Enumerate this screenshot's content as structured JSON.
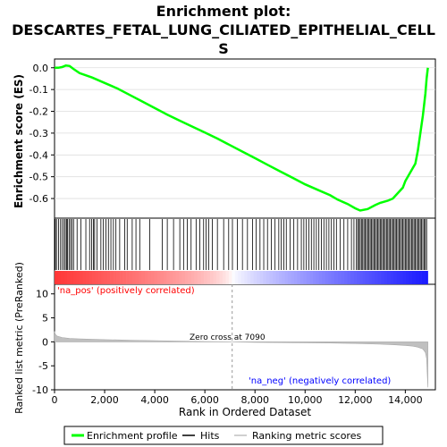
{
  "chart_data": {
    "type": "line",
    "title_line1": "Enrichment plot:",
    "title_line2": "DESCARTES_FETAL_LUNG_CILIATED_EPITHELIAL_CELL",
    "title_line3": "S",
    "top_panel": {
      "ylabel": "Enrichment score (ES)",
      "ylim": [
        -0.69,
        0.04
      ],
      "yticks": [
        0.0,
        -0.1,
        -0.2,
        -0.3,
        -0.4,
        -0.5,
        -0.6
      ],
      "ytick_labels": [
        "0.0",
        "-0.1",
        "-0.2",
        "-0.3",
        "-0.4",
        "-0.5",
        "-0.6"
      ],
      "series": [
        {
          "name": "Enrichment profile",
          "color": "#00ff00",
          "x": [
            0,
            150,
            300,
            450,
            600,
            750,
            1000,
            1500,
            2000,
            2500,
            3000,
            3500,
            4000,
            4500,
            5000,
            5500,
            6000,
            6500,
            7000,
            7500,
            8000,
            8500,
            9000,
            9500,
            10000,
            10500,
            11000,
            11300,
            11700,
            12000,
            12200,
            12500,
            12800,
            13000,
            13300,
            13500,
            13700,
            13900,
            14000,
            14200,
            14300,
            14400,
            14500,
            14600,
            14700,
            14800,
            14850,
            14900
          ],
          "y": [
            0.0,
            0.0,
            0.003,
            0.01,
            0.008,
            -0.005,
            -0.025,
            -0.045,
            -0.07,
            -0.095,
            -0.125,
            -0.155,
            -0.185,
            -0.215,
            -0.243,
            -0.27,
            -0.297,
            -0.325,
            -0.355,
            -0.385,
            -0.415,
            -0.445,
            -0.475,
            -0.505,
            -0.535,
            -0.56,
            -0.585,
            -0.605,
            -0.625,
            -0.645,
            -0.655,
            -0.648,
            -0.63,
            -0.62,
            -0.61,
            -0.6,
            -0.575,
            -0.55,
            -0.52,
            -0.48,
            -0.46,
            -0.44,
            -0.38,
            -0.3,
            -0.22,
            -0.12,
            -0.05,
            0.0
          ]
        }
      ]
    },
    "hits_panel": {
      "label": "Hits",
      "hit_positions": [
        30,
        80,
        160,
        240,
        310,
        380,
        430,
        480,
        520,
        580,
        640,
        700,
        760,
        900,
        1050,
        1250,
        1400,
        1480,
        1550,
        1600,
        1700,
        1850,
        1950,
        2050,
        2150,
        2250,
        2350,
        2450,
        2600,
        2800,
        2900,
        3100,
        3250,
        3400,
        3800,
        4300,
        4500,
        4750,
        5000,
        5150,
        5300,
        5450,
        5650,
        5800,
        5950,
        6050,
        6150,
        6300,
        6500,
        6750,
        6950,
        7100,
        7300,
        7500,
        7700,
        7900,
        8050,
        8200,
        8350,
        8500,
        8650,
        8800,
        8950,
        9050,
        9150,
        9250,
        9400,
        9550,
        9700,
        9850,
        9950,
        10050,
        10150,
        10250,
        10350,
        10450,
        10550,
        10650,
        10750,
        10850,
        10950,
        11050,
        11150,
        11250,
        11400,
        11550,
        11700,
        11850,
        11950,
        12050,
        12100,
        12150,
        12200,
        12250,
        12300,
        12350,
        12400,
        12450,
        12500,
        12550,
        12600,
        12650,
        12700,
        12750,
        12800,
        12850,
        12900,
        12950,
        13000,
        13050,
        13100,
        13150,
        13200,
        13250,
        13300,
        13350,
        13400,
        13450,
        13500,
        13550,
        13600,
        13650,
        13700,
        13750,
        13800,
        13850,
        13900,
        13950,
        14000,
        14050,
        14100,
        14150,
        14200,
        14250,
        14300,
        14350,
        14400,
        14450,
        14500,
        14550,
        14600,
        14650,
        14700,
        14750,
        14800,
        14850
      ]
    },
    "metric_panel": {
      "ylabel": "Ranked list metric (PreRanked)",
      "ylim": [
        -10,
        12
      ],
      "yticks": [
        10,
        5,
        0,
        -5,
        -10
      ],
      "ytick_labels": [
        "10",
        "5",
        "0",
        "-5",
        "-10"
      ],
      "series_name": "Ranking metric scores",
      "series_color": "#c0c0c0",
      "x": [
        0,
        30,
        100,
        300,
        600,
        1000,
        2000,
        3000,
        4000,
        5000,
        6000,
        7090,
        8000,
        9000,
        10000,
        11000,
        12000,
        13000,
        13500,
        14000,
        14300,
        14500,
        14700,
        14800,
        14850,
        14900
      ],
      "y": [
        2.2,
        1.6,
        1.2,
        0.9,
        0.7,
        0.6,
        0.45,
        0.35,
        0.25,
        0.15,
        0.07,
        0.0,
        -0.1,
        -0.15,
        -0.2,
        -0.25,
        -0.35,
        -0.5,
        -0.6,
        -0.75,
        -0.9,
        -1.1,
        -1.5,
        -2.2,
        -3.5,
        -9.5
      ],
      "zero_cross_label": "Zero cross at 7090",
      "zero_cross_x": 7090,
      "pos_label": "'na_pos' (positively correlated)",
      "neg_label": "'na_neg' (negatively correlated)",
      "xlabel": "Rank in Ordered Dataset",
      "xlim": [
        0,
        15200
      ],
      "xticks": [
        0,
        2000,
        4000,
        6000,
        8000,
        10000,
        12000,
        14000
      ],
      "xtick_labels": [
        "0",
        "2,000",
        "4,000",
        "6,000",
        "8,000",
        "10,000",
        "12,000",
        "14,000"
      ]
    },
    "legend": {
      "placement": "bottom",
      "items": [
        {
          "label": "Enrichment profile",
          "color": "#00ff00"
        },
        {
          "label": "Hits",
          "color": "#000000"
        },
        {
          "label": "Ranking metric scores",
          "color": "#c0c0c0"
        }
      ]
    }
  }
}
